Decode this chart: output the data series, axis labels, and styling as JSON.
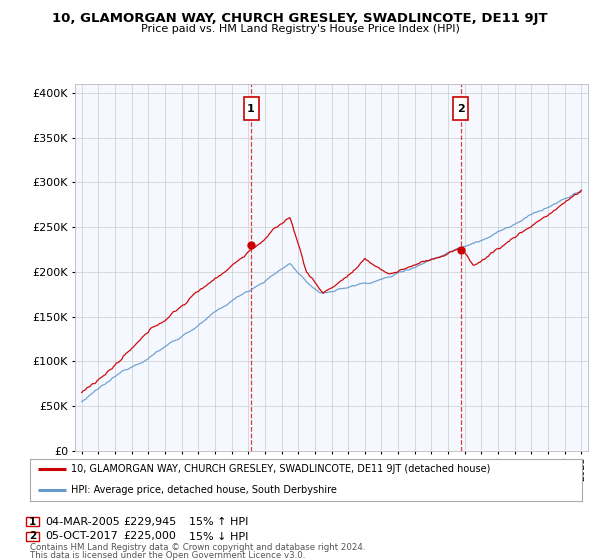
{
  "title": "10, GLAMORGAN WAY, CHURCH GRESLEY, SWADLINCOTE, DE11 9JT",
  "subtitle": "Price paid vs. HM Land Registry's House Price Index (HPI)",
  "legend_line1": "10, GLAMORGAN WAY, CHURCH GRESLEY, SWADLINCOTE, DE11 9JT (detached house)",
  "legend_line2": "HPI: Average price, detached house, South Derbyshire",
  "annotation1_date": "04-MAR-2005",
  "annotation1_price": "£229,945",
  "annotation1_hpi": "15% ↑ HPI",
  "annotation1_year": 2005.17,
  "annotation1_value": 229945,
  "annotation2_date": "05-OCT-2017",
  "annotation2_price": "£225,000",
  "annotation2_hpi": "15% ↓ HPI",
  "annotation2_year": 2017.75,
  "annotation2_value": 225000,
  "footer1": "Contains HM Land Registry data © Crown copyright and database right 2024.",
  "footer2": "This data is licensed under the Open Government Licence v3.0.",
  "ylim_min": 0,
  "ylim_max": 410000,
  "color_price": "#cc0000",
  "color_hpi": "#6699cc",
  "background_plot": "#f5f8ff",
  "background_fig": "#ffffff",
  "grid_color": "#cccccc",
  "yticks": [
    0,
    50000,
    100000,
    150000,
    200000,
    250000,
    300000,
    350000,
    400000
  ]
}
